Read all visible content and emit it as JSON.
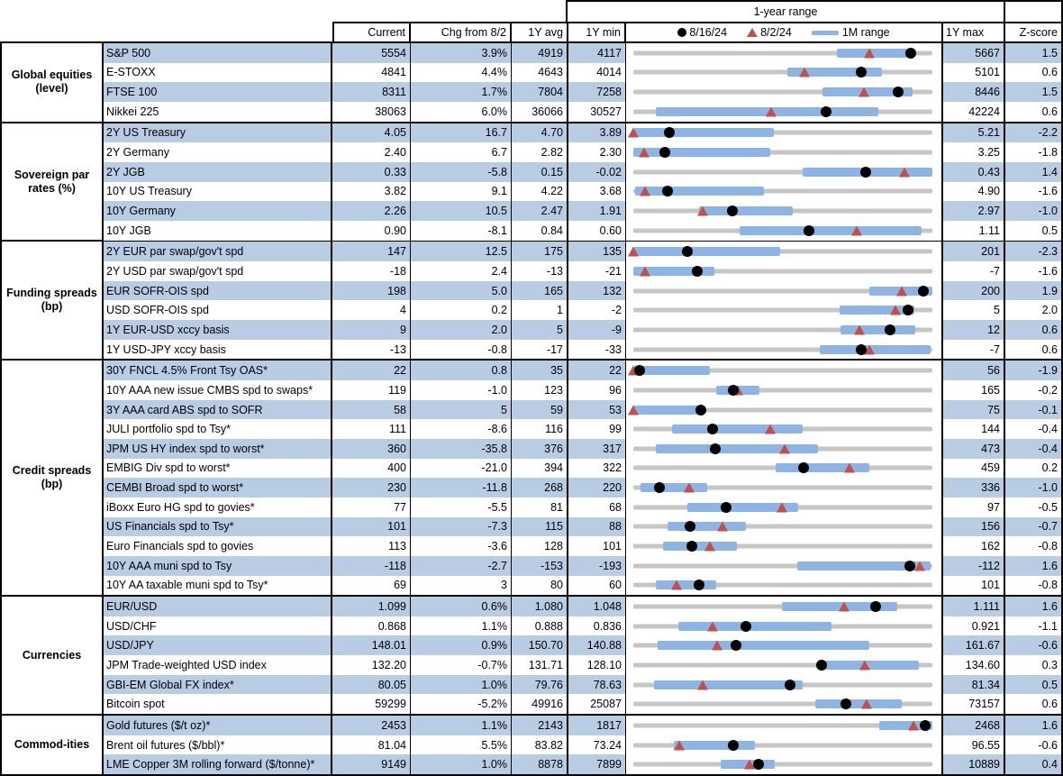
{
  "header": {
    "range_title": "1-year range",
    "columns": {
      "current": "Current",
      "chg": "Chg from 8/2",
      "avg": "1Y avg",
      "min": "1Y min",
      "max": "1Y max",
      "z": "Z-score"
    },
    "legend": [
      {
        "marker": "dot",
        "label": "8/16/24"
      },
      {
        "marker": "triangle",
        "label": "8/2/24"
      },
      {
        "marker": "bar",
        "label": "1M range"
      }
    ]
  },
  "chart_data": {
    "type": "table",
    "title": "1-year range",
    "note": "Each row shows Current, change since 8/2, 1Y average, 1Y min/max, Z-score, and a 1-year range strip with 1M range bar (fractions of min-to-max track), dot = 8/16/24 level, triangle = 8/2/24 level.",
    "colors": {
      "stripe": "#b8cce4",
      "bar": "#8eb4e3",
      "track": "#c6c6c6",
      "triangle": "#c0504d",
      "dot": "#000000"
    },
    "groups": [
      {
        "label": "Global equities (level)",
        "rows": [
          {
            "name": "S&P 500",
            "current": "5554",
            "chg": "3.9%",
            "avg": "4919",
            "min": "4117",
            "max": "5667",
            "z": "1.5",
            "bar": [
              0.68,
              0.94
            ],
            "dot": 0.927,
            "tri": 0.79
          },
          {
            "name": "E-STOXX",
            "current": "4841",
            "chg": "4.4%",
            "avg": "4643",
            "min": "4014",
            "max": "5101",
            "z": "0.6",
            "bar": [
              0.515,
              0.83
            ],
            "dot": 0.761,
            "tri": 0.573
          },
          {
            "name": "FTSE 100",
            "current": "8311",
            "chg": "1.7%",
            "avg": "7804",
            "min": "7258",
            "max": "8446",
            "z": "1.5",
            "bar": [
              0.632,
              0.934
            ],
            "dot": 0.886,
            "tri": 0.77
          },
          {
            "name": "Nikkei 225",
            "current": "38063",
            "chg": "6.0%",
            "avg": "36066",
            "min": "30527",
            "max": "42224",
            "z": "0.6",
            "bar": [
              0.075,
              0.818
            ],
            "dot": 0.644,
            "tri": 0.46
          }
        ]
      },
      {
        "label": "Sovereign par rates (%)",
        "rows": [
          {
            "name": "2Y US Treasury",
            "current": "4.05",
            "chg": "16.7",
            "avg": "4.70",
            "min": "3.89",
            "max": "5.21",
            "z": "-2.2",
            "bar": [
              0.0,
              0.47
            ],
            "dot": 0.121,
            "tri": 0.0
          },
          {
            "name": "2Y Germany",
            "current": "2.40",
            "chg": "6.7",
            "avg": "2.82",
            "min": "2.30",
            "max": "3.25",
            "z": "-1.8",
            "bar": [
              0.0,
              0.457
            ],
            "dot": 0.105,
            "tri": 0.035
          },
          {
            "name": "2Y JGB",
            "current": "0.33",
            "chg": "-5.8",
            "avg": "0.15",
            "min": "-0.02",
            "max": "0.43",
            "z": "1.4",
            "bar": [
              0.567,
              1.0
            ],
            "dot": 0.778,
            "tri": 0.907
          },
          {
            "name": "10Y US Treasury",
            "current": "3.82",
            "chg": "9.1",
            "avg": "4.22",
            "min": "3.68",
            "max": "4.90",
            "z": "-1.6",
            "bar": [
              0.005,
              0.437
            ],
            "dot": 0.115,
            "tri": 0.04
          },
          {
            "name": "10Y Germany",
            "current": "2.26",
            "chg": "10.5",
            "avg": "2.47",
            "min": "1.91",
            "max": "2.97",
            "z": "-1.0",
            "bar": [
              0.221,
              0.532
            ],
            "dot": 0.33,
            "tri": 0.231
          },
          {
            "name": "10Y JGB",
            "current": "0.90",
            "chg": "-8.1",
            "avg": "0.84",
            "min": "0.60",
            "max": "1.11",
            "z": "0.5",
            "bar": [
              0.356,
              0.964
            ],
            "dot": 0.588,
            "tri": 0.747
          }
        ]
      },
      {
        "label": "Funding spreads (bp)",
        "rows": [
          {
            "name": "2Y EUR par swap/gov't spd",
            "current": "147",
            "chg": "12.5",
            "avg": "175",
            "min": "135",
            "max": "201",
            "z": "-2.3",
            "bar": [
              0.0,
              0.49
            ],
            "dot": 0.182,
            "tri": 0.0
          },
          {
            "name": "2Y USD par swap/gov't spd",
            "current": "-18",
            "chg": "2.4",
            "avg": "-13",
            "min": "-21",
            "max": "-7",
            "z": "-1.6",
            "bar": [
              0.0,
              0.27
            ],
            "dot": 0.214,
            "tri": 0.04
          },
          {
            "name": "EUR SOFR-OIS spd",
            "current": "198",
            "chg": "5.0",
            "avg": "165",
            "min": "132",
            "max": "200",
            "z": "1.9",
            "bar": [
              0.79,
              1.0
            ],
            "dot": 0.97,
            "tri": 0.897
          },
          {
            "name": "USD SOFR-OIS spd",
            "current": "4",
            "chg": "0.2",
            "avg": "1",
            "min": "-2",
            "max": "5",
            "z": "2.0",
            "bar": [
              0.69,
              0.94
            ],
            "dot": 0.92,
            "tri": 0.875
          },
          {
            "name": "1Y EUR-USD xccy basis",
            "current": "9",
            "chg": "2.0",
            "avg": "5",
            "min": "-9",
            "max": "12",
            "z": "0.6",
            "bar": [
              0.693,
              0.944
            ],
            "dot": 0.857,
            "tri": 0.757
          },
          {
            "name": "1Y USD-JPY xccy basis",
            "current": "-13",
            "chg": "-0.8",
            "avg": "-17",
            "min": "-33",
            "max": "-7",
            "z": "0.6",
            "bar": [
              0.623,
              0.994
            ],
            "dot": 0.762,
            "tri": 0.79
          }
        ]
      },
      {
        "label": "Credit spreads (bp)",
        "rows": [
          {
            "name": "30Y FNCL 4.5% Front Tsy OAS*",
            "current": "22",
            "chg": "0.8",
            "avg": "35",
            "min": "22",
            "max": "56",
            "z": "-1.9",
            "bar": [
              0.0,
              0.256
            ],
            "dot": 0.02,
            "tri": 0.0
          },
          {
            "name": "10Y AAA new issue CMBS spd to swaps*",
            "current": "119",
            "chg": "-1.0",
            "avg": "123",
            "min": "96",
            "max": "165",
            "z": "-0.2",
            "bar": [
              0.276,
              0.422
            ],
            "dot": 0.333,
            "tri": 0.348
          },
          {
            "name": "3Y AAA card ABS spd to SOFR",
            "current": "58",
            "chg": "5",
            "avg": "59",
            "min": "53",
            "max": "75",
            "z": "-0.1",
            "bar": [
              0.0,
              0.221
            ],
            "dot": 0.227,
            "tri": 0.0
          },
          {
            "name": "JULI portfolio spd to Tsy*",
            "current": "111",
            "chg": "-8.6",
            "avg": "116",
            "min": "99",
            "max": "144",
            "z": "-0.4",
            "bar": [
              0.13,
              0.567
            ],
            "dot": 0.265,
            "tri": 0.458
          },
          {
            "name": "JPM US HY index spd to worst*",
            "current": "360",
            "chg": "-35.8",
            "avg": "376",
            "min": "317",
            "max": "473",
            "z": "-0.4",
            "bar": [
              0.075,
              0.617
            ],
            "dot": 0.275,
            "tri": 0.505
          },
          {
            "name": "EMBIG Div spd to worst*",
            "current": "400",
            "chg": "-21.0",
            "avg": "394",
            "min": "322",
            "max": "459",
            "z": "0.2",
            "bar": [
              0.477,
              0.788
            ],
            "dot": 0.569,
            "tri": 0.723
          },
          {
            "name": "CEMBI Broad spd to worst*",
            "current": "230",
            "chg": "-11.8",
            "avg": "268",
            "min": "220",
            "max": "336",
            "z": "-1.0",
            "bar": [
              0.025,
              0.246
            ],
            "dot": 0.086,
            "tri": 0.188
          },
          {
            "name": "iBoxx Euro HG spd to govies*",
            "current": "77",
            "chg": "-5.5",
            "avg": "81",
            "min": "68",
            "max": "97",
            "z": "-0.5",
            "bar": [
              0.181,
              0.552
            ],
            "dot": 0.31,
            "tri": 0.497
          },
          {
            "name": "US Financials spd to Tsy*",
            "current": "101",
            "chg": "-7.3",
            "avg": "115",
            "min": "88",
            "max": "156",
            "z": "-0.7",
            "bar": [
              0.115,
              0.376
            ],
            "dot": 0.191,
            "tri": 0.299
          },
          {
            "name": "Euro Financials spd to govies",
            "current": "113",
            "chg": "-3.6",
            "avg": "128",
            "min": "101",
            "max": "162",
            "z": "-0.8",
            "bar": [
              0.1,
              0.346
            ],
            "dot": 0.197,
            "tri": 0.256
          },
          {
            "name": "10Y AAA muni spd to Tsy",
            "current": "-118",
            "chg": "-2.7",
            "avg": "-153",
            "min": "-193",
            "max": "-112",
            "z": "1.6",
            "bar": [
              0.547,
              0.994
            ],
            "dot": 0.924,
            "tri": 0.959
          },
          {
            "name": "10Y AA taxable muni spd to Tsy*",
            "current": "69",
            "chg": "3",
            "avg": "80",
            "min": "60",
            "max": "101",
            "z": "-0.8",
            "bar": [
              0.075,
              0.276
            ],
            "dot": 0.22,
            "tri": 0.146
          }
        ]
      },
      {
        "label": "Currencies",
        "rows": [
          {
            "name": "EUR/USD",
            "current": "1.099",
            "chg": "0.6%",
            "avg": "1.080",
            "min": "1.048",
            "max": "1.111",
            "z": "1.6",
            "bar": [
              0.497,
              0.883
            ],
            "dot": 0.81,
            "tri": 0.706
          },
          {
            "name": "USD/CHF",
            "current": "0.868",
            "chg": "1.1%",
            "avg": "0.888",
            "min": "0.836",
            "max": "0.921",
            "z": "-1.1",
            "bar": [
              0.151,
              0.663
            ],
            "dot": 0.378,
            "tri": 0.266
          },
          {
            "name": "USD/JPY",
            "current": "148.01",
            "chg": "0.9%",
            "avg": "150.70",
            "min": "140.88",
            "max": "161.67",
            "z": "-0.6",
            "bar": [
              0.08,
              0.788
            ],
            "dot": 0.343,
            "tri": 0.279
          },
          {
            "name": "JPM Trade-weighted USD index",
            "current": "132.20",
            "chg": "-0.7%",
            "avg": "131.71",
            "min": "128.10",
            "max": "134.60",
            "z": "0.3",
            "bar": [
              0.638,
              0.954
            ],
            "dot": 0.631,
            "tri": 0.774
          },
          {
            "name": "GBI-EM Global FX index*",
            "current": "80.05",
            "chg": "1.0%",
            "avg": "79.76",
            "min": "78.63",
            "max": "81.34",
            "z": "0.5",
            "bar": [
              0.07,
              0.567
            ],
            "dot": 0.524,
            "tri": 0.232
          },
          {
            "name": "Bitcoin spot",
            "current": "59299",
            "chg": "-5.2%",
            "avg": "49916",
            "min": "25087",
            "max": "73157",
            "z": "0.6",
            "bar": [
              0.607,
              0.898
            ],
            "dot": 0.712,
            "tri": 0.779
          }
        ]
      },
      {
        "label": "Commod-ities",
        "rows": [
          {
            "name": "Gold futures ($/t oz)*",
            "current": "2453",
            "chg": "1.1%",
            "avg": "2143",
            "min": "1817",
            "max": "2468",
            "z": "1.6",
            "bar": [
              0.823,
              1.0
            ],
            "dot": 0.977,
            "tri": 0.936
          },
          {
            "name": "Brent oil futures ($/bbl)*",
            "current": "81.04",
            "chg": "5.5%",
            "avg": "83.82",
            "min": "73.24",
            "max": "96.55",
            "z": "-0.6",
            "bar": [
              0.136,
              0.407
            ],
            "dot": 0.335,
            "tri": 0.154
          },
          {
            "name": "LME Copper 3M rolling forward ($/tonne)*",
            "current": "9149",
            "chg": "1.0%",
            "avg": "8878",
            "min": "7899",
            "max": "10889",
            "z": "0.4",
            "bar": [
              0.291,
              0.472
            ],
            "dot": 0.418,
            "tri": 0.388
          }
        ]
      }
    ]
  }
}
